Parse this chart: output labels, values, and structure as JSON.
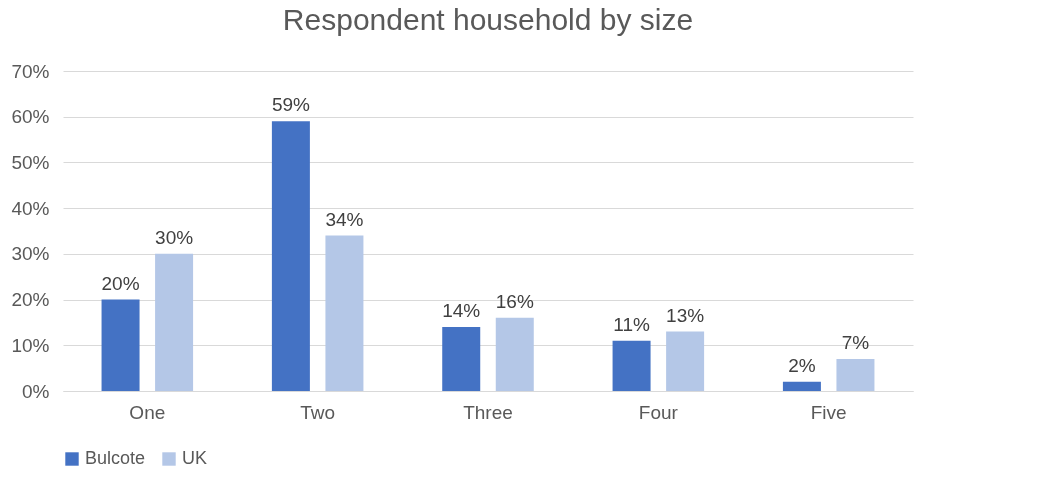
{
  "chart_data": {
    "type": "bar",
    "title": "Respondent household by size",
    "categories": [
      "One",
      "Two",
      "Three",
      "Four",
      "Five"
    ],
    "series": [
      {
        "name": "Bulcote",
        "color": "#4472c4",
        "values": [
          20,
          59,
          14,
          11,
          2
        ],
        "value_labels": [
          "20%",
          "59%",
          "14%",
          "11%",
          "2%"
        ]
      },
      {
        "name": "UK",
        "color": "#b4c7e7",
        "values": [
          30,
          34,
          16,
          13,
          7
        ],
        "value_labels": [
          "30%",
          "34%",
          "16%",
          "13%",
          "7%"
        ]
      }
    ],
    "ylim": [
      0,
      70
    ],
    "yticks": [
      {
        "value": 0,
        "label": "0%"
      },
      {
        "value": 10,
        "label": "10%"
      },
      {
        "value": 20,
        "label": "20%"
      },
      {
        "value": 30,
        "label": "30%"
      },
      {
        "value": 40,
        "label": "40%"
      },
      {
        "value": 50,
        "label": "50%"
      },
      {
        "value": 60,
        "label": "60%"
      },
      {
        "value": 70,
        "label": "70%"
      }
    ],
    "grid": "y",
    "legend": "bottom"
  }
}
